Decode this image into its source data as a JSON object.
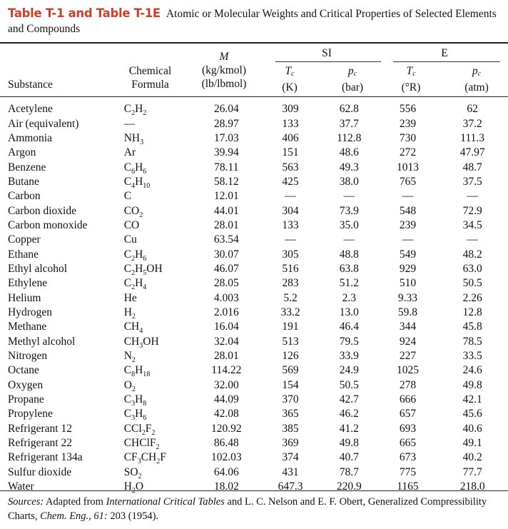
{
  "caption": {
    "label": "Table T-1 and Table T-1E",
    "title": "Atomic or Molecular Weights and Critical Properties of Selected Elements and Compounds"
  },
  "headers": {
    "substance": "Substance",
    "formula_line1": "Chemical",
    "formula_line2": "Formula",
    "m_symbol": "M",
    "m_unit1": "(kg/kmol)",
    "m_unit2": "(lb/lbmol)",
    "group_si": "SI",
    "group_e": "E",
    "tc_symbol": "T",
    "tc_sub": "c",
    "pc_symbol": "p",
    "pc_sub": "c",
    "tk_unit": "(K)",
    "pb_unit": "(bar)",
    "tr_unit": "(°R)",
    "pa_unit": "(atm)"
  },
  "rows": [
    {
      "substance": "Acetylene",
      "formula": "C<sub>2</sub>H<sub>2</sub>",
      "M": "26.04",
      "Tc_K": "309",
      "pc_bar": "62.8",
      "Tc_R": "556",
      "pc_atm": "62"
    },
    {
      "substance": "Air (equivalent)",
      "formula": "—",
      "M": "28.97",
      "Tc_K": "133",
      "pc_bar": "37.7",
      "Tc_R": "239",
      "pc_atm": "37.2"
    },
    {
      "substance": "Ammonia",
      "formula": "NH<sub>3</sub>",
      "M": "17.03",
      "Tc_K": "406",
      "pc_bar": "112.8",
      "Tc_R": "730",
      "pc_atm": "111.3"
    },
    {
      "substance": "Argon",
      "formula": "Ar",
      "M": "39.94",
      "Tc_K": "151",
      "pc_bar": "48.6",
      "Tc_R": "272",
      "pc_atm": "47.97"
    },
    {
      "substance": "Benzene",
      "formula": "C<sub>6</sub>H<sub>6</sub>",
      "M": "78.11",
      "Tc_K": "563",
      "pc_bar": "49.3",
      "Tc_R": "1013",
      "pc_atm": "48.7"
    },
    {
      "substance": "Butane",
      "formula": "C<sub>4</sub>H<sub>10</sub>",
      "M": "58.12",
      "Tc_K": "425",
      "pc_bar": "38.0",
      "Tc_R": "765",
      "pc_atm": "37.5"
    },
    {
      "substance": "Carbon",
      "formula": "C",
      "M": "12.01",
      "Tc_K": "—",
      "pc_bar": "—",
      "Tc_R": "—",
      "pc_atm": "—"
    },
    {
      "substance": "Carbon dioxide",
      "formula": "CO<sub>2</sub>",
      "M": "44.01",
      "Tc_K": "304",
      "pc_bar": "73.9",
      "Tc_R": "548",
      "pc_atm": "72.9"
    },
    {
      "substance": "Carbon monoxide",
      "formula": "CO",
      "M": "28.01",
      "Tc_K": "133",
      "pc_bar": "35.0",
      "Tc_R": "239",
      "pc_atm": "34.5"
    },
    {
      "substance": "Copper",
      "formula": "Cu",
      "M": "63.54",
      "Tc_K": "—",
      "pc_bar": "—",
      "Tc_R": "—",
      "pc_atm": "—"
    },
    {
      "substance": "Ethane",
      "formula": "C<sub>2</sub>H<sub>6</sub>",
      "M": "30.07",
      "Tc_K": "305",
      "pc_bar": "48.8",
      "Tc_R": "549",
      "pc_atm": "48.2"
    },
    {
      "substance": "Ethyl alcohol",
      "formula": "C<sub>2</sub>H<sub>5</sub>OH",
      "M": "46.07",
      "Tc_K": "516",
      "pc_bar": "63.8",
      "Tc_R": "929",
      "pc_atm": "63.0"
    },
    {
      "substance": "Ethylene",
      "formula": "C<sub>2</sub>H<sub>4</sub>",
      "M": "28.05",
      "Tc_K": "283",
      "pc_bar": "51.2",
      "Tc_R": "510",
      "pc_atm": "50.5"
    },
    {
      "substance": "Helium",
      "formula": "He",
      "M": "4.003",
      "Tc_K": "5.2",
      "pc_bar": "2.3",
      "Tc_R": "9.33",
      "pc_atm": "2.26"
    },
    {
      "substance": "Hydrogen",
      "formula": "H<sub>2</sub>",
      "M": "2.016",
      "Tc_K": "33.2",
      "pc_bar": "13.0",
      "Tc_R": "59.8",
      "pc_atm": "12.8"
    },
    {
      "substance": "Methane",
      "formula": "CH<sub>4</sub>",
      "M": "16.04",
      "Tc_K": "191",
      "pc_bar": "46.4",
      "Tc_R": "344",
      "pc_atm": "45.8"
    },
    {
      "substance": "Methyl alcohol",
      "formula": "CH<sub>3</sub>OH",
      "M": "32.04",
      "Tc_K": "513",
      "pc_bar": "79.5",
      "Tc_R": "924",
      "pc_atm": "78.5"
    },
    {
      "substance": "Nitrogen",
      "formula": "N<sub>2</sub>",
      "M": "28.01",
      "Tc_K": "126",
      "pc_bar": "33.9",
      "Tc_R": "227",
      "pc_atm": "33.5"
    },
    {
      "substance": "Octane",
      "formula": "C<sub>8</sub>H<sub>18</sub>",
      "M": "114.22",
      "Tc_K": "569",
      "pc_bar": "24.9",
      "Tc_R": "1025",
      "pc_atm": "24.6"
    },
    {
      "substance": "Oxygen",
      "formula": "O<sub>2</sub>",
      "M": "32.00",
      "Tc_K": "154",
      "pc_bar": "50.5",
      "Tc_R": "278",
      "pc_atm": "49.8"
    },
    {
      "substance": "Propane",
      "formula": "C<sub>3</sub>H<sub>8</sub>",
      "M": "44.09",
      "Tc_K": "370",
      "pc_bar": "42.7",
      "Tc_R": "666",
      "pc_atm": "42.1"
    },
    {
      "substance": "Propylene",
      "formula": "C<sub>3</sub>H<sub>6</sub>",
      "M": "42.08",
      "Tc_K": "365",
      "pc_bar": "46.2",
      "Tc_R": "657",
      "pc_atm": "45.6"
    },
    {
      "substance": "Refrigerant 12",
      "formula": "CCl<sub>2</sub>F<sub>2</sub>",
      "M": "120.92",
      "Tc_K": "385",
      "pc_bar": "41.2",
      "Tc_R": "693",
      "pc_atm": "40.6"
    },
    {
      "substance": "Refrigerant 22",
      "formula": "CHClF<sub>2</sub>",
      "M": "86.48",
      "Tc_K": "369",
      "pc_bar": "49.8",
      "Tc_R": "665",
      "pc_atm": "49.1"
    },
    {
      "substance": "Refrigerant 134a",
      "formula": "CF<sub>3</sub>CH<sub>2</sub>F",
      "M": "102.03",
      "Tc_K": "374",
      "pc_bar": "40.7",
      "Tc_R": "673",
      "pc_atm": "40.2"
    },
    {
      "substance": "Sulfur dioxide",
      "formula": "SO<sub>2</sub>",
      "M": "64.06",
      "Tc_K": "431",
      "pc_bar": "78.7",
      "Tc_R": "775",
      "pc_atm": "77.7"
    },
    {
      "substance": "Water",
      "formula": "H<sub>2</sub>O",
      "M": "18.02",
      "Tc_K": "647.3",
      "pc_bar": "220.9",
      "Tc_R": "1165",
      "pc_atm": "218.0"
    }
  ],
  "sources": {
    "label": "Sources:",
    "text1": " Adapted from ",
    "book": "International Critical Tables",
    "text2": " and L. C. Nelson and E. F. Obert, Generalized Compressibility Charts, ",
    "journal": "Chem. Eng., 61:",
    "text3": " 203 (1954)."
  }
}
